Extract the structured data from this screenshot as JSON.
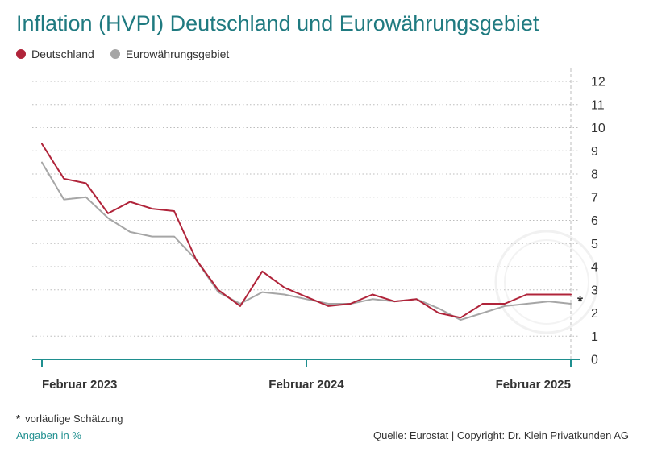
{
  "title": "Inflation (HVPI) Deutschland und Eurowährungsgebiet",
  "legend": {
    "de": "Deutschland",
    "eu": "Eurowährungsgebiet"
  },
  "footnote": {
    "symbol": "*",
    "text": "vorläufige Schätzung"
  },
  "unit_note": "Angaben in %",
  "source": "Quelle: Eurostat | Copyright: Dr. Klein Privatkunden AG",
  "colors": {
    "deutschland": "#b0243a",
    "euro": "#a6a6a6",
    "axis": "#1f8f8f",
    "title": "#1f7a80",
    "grid": "#bdbdbd"
  },
  "chart_data": {
    "type": "line",
    "x": [
      "2023-02",
      "2023-03",
      "2023-04",
      "2023-05",
      "2023-06",
      "2023-07",
      "2023-08",
      "2023-09",
      "2023-10",
      "2023-11",
      "2023-12",
      "2024-01",
      "2024-02",
      "2024-03",
      "2024-04",
      "2024-05",
      "2024-06",
      "2024-07",
      "2024-08",
      "2024-09",
      "2024-10",
      "2024-11",
      "2024-12",
      "2025-01",
      "2025-02"
    ],
    "x_tick_labels": [
      {
        "x": "2023-02",
        "label": "Februar 2023"
      },
      {
        "x": "2024-02",
        "label": "Februar 2024"
      },
      {
        "x": "2025-02",
        "label": "Februar 2025"
      }
    ],
    "series": [
      {
        "name": "Deutschland",
        "values": [
          9.3,
          7.8,
          7.6,
          6.3,
          6.8,
          6.5,
          6.4,
          4.3,
          3.0,
          2.3,
          3.8,
          3.1,
          2.7,
          2.3,
          2.4,
          2.8,
          2.5,
          2.6,
          2.0,
          1.8,
          2.4,
          2.4,
          2.8,
          2.8,
          2.8
        ]
      },
      {
        "name": "Eurowährungsgebiet",
        "values": [
          8.5,
          6.9,
          7.0,
          6.1,
          5.5,
          5.3,
          5.3,
          4.3,
          2.9,
          2.4,
          2.9,
          2.8,
          2.6,
          2.4,
          2.4,
          2.6,
          2.5,
          2.6,
          2.2,
          1.7,
          2.0,
          2.3,
          2.4,
          2.5,
          2.4
        ]
      }
    ],
    "ylim": [
      0,
      12
    ],
    "y_ticks": [
      0,
      1,
      2,
      3,
      4,
      5,
      6,
      7,
      8,
      9,
      10,
      11,
      12
    ],
    "y_axis_position": "right",
    "grid": "horizontal-dotted",
    "legend_position": "top-left",
    "annotation": {
      "text": "*",
      "x": "2025-02"
    }
  }
}
